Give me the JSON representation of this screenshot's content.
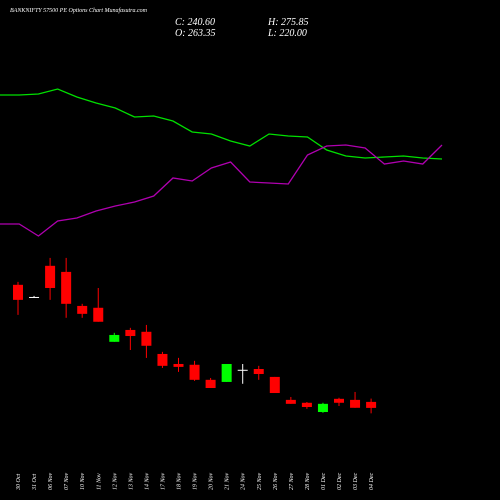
{
  "chart_data": [
    {
      "type": "line",
      "ylim": [
        0,
        300
      ],
      "series": [
        {
          "name": "",
          "color": "#00e000",
          "values": [
            205,
            205,
            206,
            211,
            203,
            197,
            192,
            183,
            184,
            179,
            168,
            166,
            159,
            154,
            166,
            164,
            163,
            150,
            144,
            142,
            143,
            144,
            142,
            141
          ]
        },
        {
          "name": "",
          "color": "#b000b0",
          "values": [
            76,
            76,
            64,
            79,
            82,
            89,
            94,
            98,
            104,
            122,
            119,
            132,
            138,
            118,
            117,
            116,
            145,
            154,
            155,
            152,
            136,
            139,
            136,
            155
          ]
        }
      ]
    },
    {
      "type": "candlestick",
      "title": "BANKNIFTY 57500 PE Options Chart Munafasutra.com",
      "ohlc_labels": [
        "C: 240.60",
        "O: 263.35",
        "H: 275.85",
        "L: 220.00"
      ],
      "categories": [
        "30 Oct",
        "31 Oct",
        "06 Nov",
        "07 Nov",
        "10 Nov",
        "11 Nov",
        "12 Nov",
        "13 Nov",
        "14 Nov",
        "17 Nov",
        "18 Nov",
        "19 Nov",
        "20 Nov",
        "21 Nov",
        "24 Nov",
        "25 Nov",
        "26 Nov",
        "27 Nov",
        "28 Nov",
        "01 Dec",
        "02 Dec",
        "03 Dec",
        "04 Dec"
      ],
      "open": [
        707,
        661,
        779,
        756,
        627,
        620,
        491,
        536,
        529,
        445,
        407,
        404,
        347,
        339,
        385,
        388,
        358,
        271,
        260,
        225,
        275,
        271,
        263.35
      ],
      "high": [
        718,
        665,
        809,
        809,
        635,
        695,
        525,
        544,
        555,
        453,
        430,
        419,
        354,
        407,
        407,
        400,
        358,
        282,
        263,
        260,
        279,
        301,
        275.85
      ],
      "low": [
        593,
        658,
        650,
        582,
        582,
        567,
        491,
        460,
        430,
        392,
        377,
        343,
        316,
        339,
        332,
        347,
        297,
        256,
        237,
        222,
        248,
        241,
        220.0
      ],
      "close": [
        650,
        661,
        695,
        635,
        597,
        567,
        517,
        513,
        476,
        400,
        396,
        347,
        316,
        407,
        385,
        369,
        297,
        256,
        244,
        256,
        260,
        241,
        240.6
      ],
      "ylim": [
        100,
        1000
      ],
      "up_color": "#00ff00",
      "down_color": "#ff0000",
      "doji_color": "#ffffff"
    }
  ]
}
